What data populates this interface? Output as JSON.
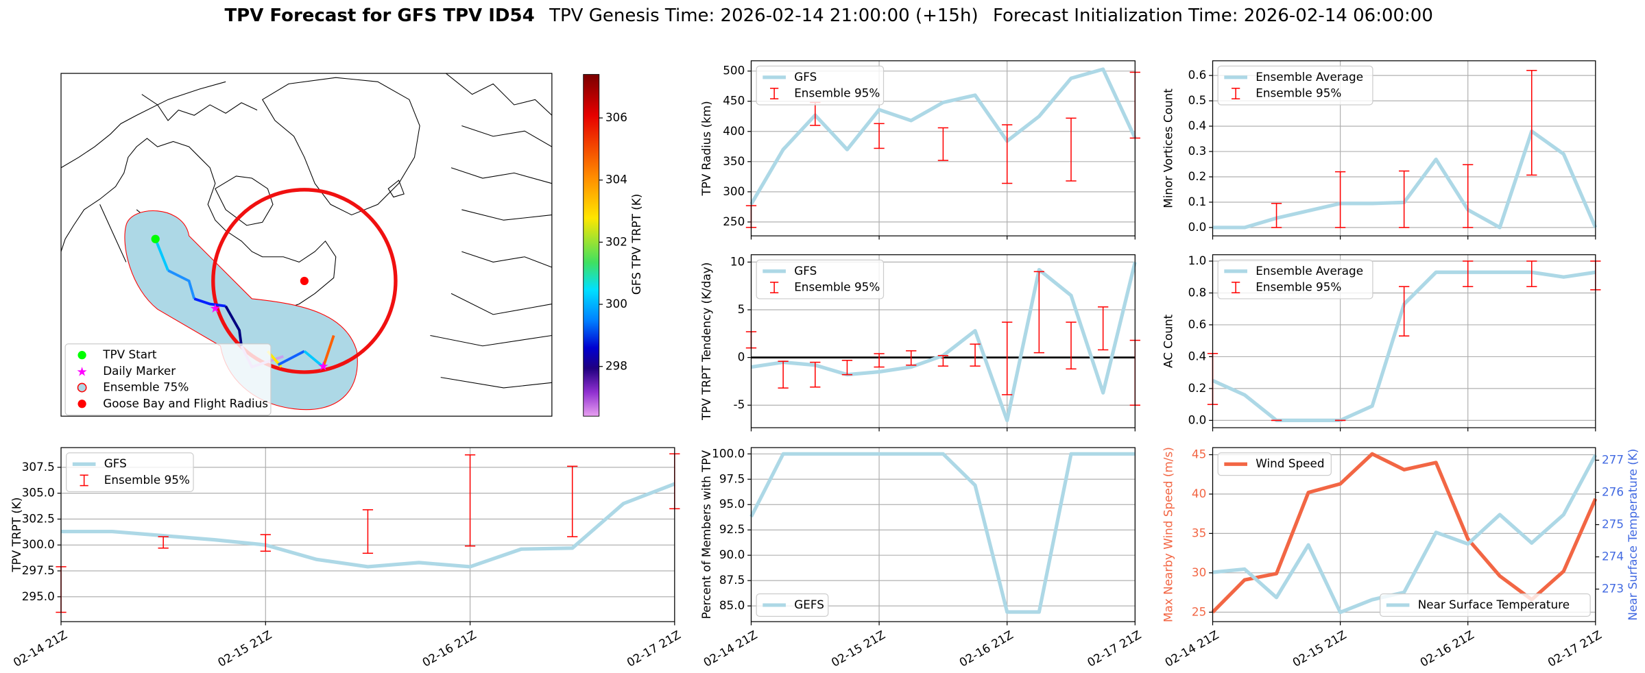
{
  "title": {
    "main": "TPV Forecast for GFS TPV ID54",
    "genesis": "TPV Genesis Time: 2026-02-14 21:00:00 (+15h)",
    "init": "Forecast Initialization Time: 2026-02-14 06:00:00"
  },
  "chart_data": [
    {
      "type": "map",
      "legend": [
        {
          "name": "TPV Start",
          "marker": "circle",
          "color": "#00ff00"
        },
        {
          "name": "Daily Marker",
          "marker": "star",
          "color": "#ff00ff"
        },
        {
          "name": "Ensemble 75%",
          "marker": "circle",
          "color": "#add8e6",
          "edgecolor": "#ff0000"
        },
        {
          "name": "Goose Bay and Flight Radius",
          "marker": "circle",
          "color": "#ff0000"
        }
      ],
      "colorbar": {
        "label": "GFS TPV TRPT (K)",
        "lim": [
          296.4,
          307.4
        ],
        "ticks": [
          298,
          300,
          302,
          304,
          306
        ]
      }
    },
    {
      "type": "line",
      "ylabel": "TPV Radius (km)",
      "x": [
        0,
        6,
        12,
        18,
        24,
        30,
        36,
        42,
        48,
        54,
        60,
        66,
        72
      ],
      "xlim": [
        0,
        72
      ],
      "xticks": [
        0,
        24,
        48,
        72
      ],
      "ylim": [
        227,
        517
      ],
      "yticks": [
        250,
        300,
        350,
        400,
        450,
        500
      ],
      "grid": true,
      "legend": "upper left",
      "series": [
        {
          "name": "GFS",
          "color": "#add8e6",
          "values": [
            279.5,
            370,
            427,
            370,
            436,
            418,
            448,
            460,
            384,
            425,
            488,
            503,
            389
          ]
        }
      ],
      "errorbars": {
        "name": "Ensemble 95%",
        "color": "#ff0000",
        "low": [
          241,
          null,
          410,
          null,
          372,
          null,
          352,
          null,
          314,
          null,
          318,
          null,
          389
        ],
        "high": [
          277,
          null,
          448,
          null,
          413,
          null,
          406,
          null,
          411,
          null,
          422,
          null,
          498
        ]
      }
    },
    {
      "type": "line",
      "ylabel": "Minor Vortices Count",
      "x": [
        0,
        6,
        12,
        18,
        24,
        30,
        36,
        42,
        48,
        54,
        60,
        66,
        72
      ],
      "xlim": [
        0,
        72
      ],
      "xticks": [
        0,
        24,
        48,
        72
      ],
      "ylim": [
        -0.033,
        0.658
      ],
      "yticks": [
        {
          "value": 0,
          "label": "0.0"
        },
        0.1,
        0.2,
        0.3,
        0.4,
        0.5,
        0.6
      ],
      "grid": true,
      "legend": "upper left",
      "series": [
        {
          "name": "Ensemble Average",
          "color": "#add8e6",
          "values": [
            0,
            0,
            0.037,
            0.066,
            0.095,
            0.095,
            0.099,
            0.269,
            0.07,
            0,
            0.38,
            0.29,
            0
          ]
        }
      ],
      "errorbars": {
        "name": "Ensemble 95%",
        "color": "#ff0000",
        "low": [
          null,
          null,
          0,
          null,
          0,
          null,
          0,
          null,
          0,
          null,
          0.207,
          null,
          null
        ],
        "high": [
          null,
          null,
          0.095,
          null,
          0.22,
          null,
          0.223,
          null,
          0.248,
          null,
          0.62,
          null,
          null
        ]
      }
    },
    {
      "type": "line",
      "ylabel": "TPV TRPT Tendency (K/day)",
      "x": [
        0,
        6,
        12,
        18,
        24,
        30,
        36,
        42,
        48,
        54,
        60,
        66,
        72
      ],
      "xlim": [
        0,
        72
      ],
      "xticks": [
        0,
        24,
        48,
        72
      ],
      "ylim": [
        -7.36,
        10.77
      ],
      "yticks": [
        -5,
        0,
        5,
        10
      ],
      "grid": true,
      "legend": "upper left",
      "hline": 0,
      "series": [
        {
          "name": "GFS",
          "color": "#add8e6",
          "values": [
            -1.0,
            -0.5,
            -0.8,
            -1.8,
            -1.5,
            -1.0,
            0.2,
            2.8,
            -6.6,
            9.2,
            6.5,
            -3.7,
            10.0
          ]
        }
      ],
      "errorbars": {
        "name": "Ensemble 95%",
        "color": "#ff0000",
        "low": [
          1.0,
          -3.2,
          -3.1,
          -1.8,
          -1.0,
          -0.8,
          -0.9,
          -0.9,
          -3.9,
          0.5,
          -1.2,
          0.8,
          -5.0
        ],
        "high": [
          2.7,
          -0.4,
          -0.5,
          -0.3,
          0.4,
          0.7,
          0.2,
          1.4,
          3.7,
          9.0,
          3.7,
          5.3,
          1.8
        ]
      }
    },
    {
      "type": "line",
      "ylabel": "AC Count",
      "x": [
        0,
        6,
        12,
        18,
        24,
        30,
        36,
        42,
        48,
        54,
        60,
        66,
        72
      ],
      "xlim": [
        0,
        72
      ],
      "xticks": [
        0,
        24,
        48,
        72
      ],
      "ylim": [
        -0.046,
        1.04
      ],
      "yticks": [
        {
          "value": 0,
          "label": "0.0"
        },
        0.2,
        0.4,
        0.6,
        0.8,
        {
          "value": 1,
          "label": "1.0"
        }
      ],
      "grid": true,
      "legend": "upper left",
      "series": [
        {
          "name": "Ensemble Average",
          "color": "#add8e6",
          "values": [
            0.25,
            0.16,
            0,
            0,
            0,
            0.09,
            0.73,
            0.93,
            0.93,
            0.93,
            0.93,
            0.9,
            0.93
          ]
        }
      ],
      "errorbars": {
        "name": "Ensemble 95%",
        "color": "#ff0000",
        "low": [
          0.1,
          null,
          0,
          null,
          0,
          null,
          0.53,
          null,
          0.84,
          null,
          0.84,
          null,
          0.82
        ],
        "high": [
          0.42,
          null,
          0,
          null,
          0,
          null,
          0.84,
          null,
          1.0,
          null,
          1.0,
          null,
          1.0
        ]
      }
    },
    {
      "type": "line",
      "ylabel": "TPV TRPT (K)",
      "x": [
        0,
        6,
        12,
        18,
        24,
        30,
        36,
        42,
        48,
        54,
        60,
        66,
        72
      ],
      "xlim": [
        0,
        72
      ],
      "xticks": [
        {
          "value": 0,
          "label": "02-14 21Z"
        },
        {
          "value": 24,
          "label": "02-15 21Z"
        },
        {
          "value": 48,
          "label": "02-16 21Z"
        },
        {
          "value": 72,
          "label": "02-17 21Z"
        }
      ],
      "ylim": [
        292.6,
        309.4
      ],
      "yticks": [
        {
          "value": 295,
          "label": "295.0"
        },
        297.5,
        {
          "value": 300,
          "label": "300.0"
        },
        302.5,
        {
          "value": 305,
          "label": "305.0"
        },
        307.5
      ],
      "grid": true,
      "legend": "upper left",
      "series": [
        {
          "name": "GFS",
          "color": "#add8e6",
          "values": [
            301.3,
            301.3,
            300.9,
            300.5,
            300.0,
            298.6,
            297.9,
            298.3,
            297.9,
            299.6,
            299.7,
            304.0,
            305.9
          ]
        }
      ],
      "errorbars": {
        "name": "Ensemble 95%",
        "color": "#ff0000",
        "low": [
          293.5,
          null,
          299.7,
          null,
          299.4,
          null,
          299.2,
          null,
          299.9,
          null,
          300.8,
          null,
          303.5
        ],
        "high": [
          297.9,
          null,
          300.8,
          null,
          301.0,
          null,
          303.4,
          null,
          308.7,
          null,
          307.6,
          null,
          308.8
        ]
      }
    },
    {
      "type": "line",
      "ylabel": "Percent of Members with TPV",
      "x": [
        0,
        6,
        12,
        18,
        24,
        30,
        36,
        42,
        48,
        54,
        60,
        66,
        72
      ],
      "xlim": [
        0,
        72
      ],
      "xticks": [
        {
          "value": 0,
          "label": "02-14 21Z"
        },
        {
          "value": 24,
          "label": "02-15 21Z"
        },
        {
          "value": 48,
          "label": "02-16 21Z"
        },
        {
          "value": 72,
          "label": "02-17 21Z"
        }
      ],
      "ylim": [
        83.45,
        100.62
      ],
      "yticks": [
        {
          "value": 85,
          "label": "85.0"
        },
        87.5,
        {
          "value": 90,
          "label": "90.0"
        },
        92.5,
        {
          "value": 95,
          "label": "95.0"
        },
        97.5,
        {
          "value": 100,
          "label": "100.0"
        }
      ],
      "grid": true,
      "legend": "lower left",
      "series": [
        {
          "name": "GEFS",
          "color": "#add8e6",
          "values": [
            93.8,
            100,
            100,
            100,
            100,
            100,
            100,
            96.9,
            84.4,
            84.4,
            100,
            100,
            100
          ]
        }
      ]
    },
    {
      "type": "line",
      "ylabel": "Max Nearby Wind Speed (m/s)",
      "ycolor": "#f26644",
      "y2label": "Near Surface Temperature (K)",
      "y2color": "#4169e1",
      "x": [
        0,
        6,
        12,
        18,
        24,
        30,
        36,
        42,
        48,
        54,
        60,
        66,
        72
      ],
      "xlim": [
        0,
        72
      ],
      "xticks": [
        {
          "value": 0,
          "label": "02-14 21Z"
        },
        {
          "value": 24,
          "label": "02-15 21Z"
        },
        {
          "value": 48,
          "label": "02-16 21Z"
        },
        {
          "value": 72,
          "label": "02-17 21Z"
        }
      ],
      "ylim": [
        23.8,
        45.9
      ],
      "yticks": [
        25,
        30,
        35,
        40,
        45
      ],
      "y2lim": [
        271.99,
        277.39
      ],
      "y2ticks": [
        273,
        274,
        275,
        276,
        277
      ],
      "grid": true,
      "legend": "upper left",
      "series": [
        {
          "name": "Wind Speed",
          "color": "#f26644",
          "values": [
            25.0,
            29.1,
            29.9,
            40.2,
            41.3,
            45.1,
            43.1,
            44.0,
            34.3,
            29.6,
            26.6,
            30.2,
            39.4
          ]
        },
        {
          "name": "Near Surface Temperature",
          "color": "#add8e6",
          "axis": "y2",
          "legend": "lower right",
          "values": [
            273.52,
            273.62,
            272.74,
            274.37,
            272.28,
            272.67,
            272.9,
            274.76,
            274.4,
            275.31,
            274.43,
            275.31,
            277.16
          ]
        }
      ]
    }
  ]
}
